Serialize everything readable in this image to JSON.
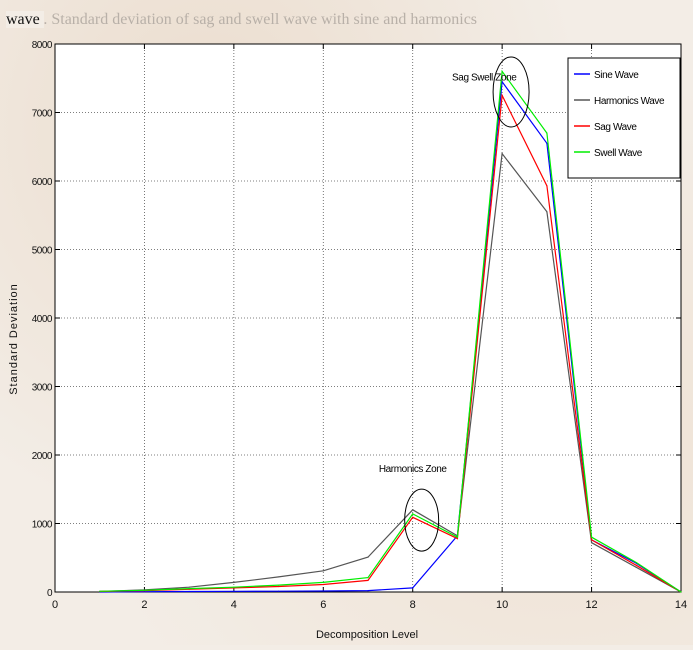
{
  "caption": {
    "faded_text": "Fig. 5. Standard deviation of sag and swell wave with sine and harmonics",
    "second_line": "wave"
  },
  "chart_data": {
    "type": "line",
    "xlabel": "Decomposition Level",
    "ylabel": "Standard Deviation",
    "xlim": [
      0,
      14
    ],
    "ylim": [
      0,
      8000
    ],
    "xticks": [
      0,
      2,
      4,
      6,
      8,
      10,
      12,
      14
    ],
    "yticks": [
      0,
      1000,
      2000,
      3000,
      4000,
      5000,
      6000,
      7000,
      8000
    ],
    "grid": true,
    "legend_position": "top-right",
    "x": [
      1,
      2,
      3,
      4,
      5,
      6,
      7,
      8,
      9,
      10,
      11,
      12,
      13,
      14
    ],
    "series": [
      {
        "name": "Sine Wave",
        "color": "#0000ff",
        "values": [
          0,
          5,
          8,
          10,
          12,
          15,
          20,
          60,
          820,
          7450,
          6550,
          760,
          420,
          0
        ]
      },
      {
        "name": "Harmonics Wave",
        "color": "#555555",
        "values": [
          10,
          30,
          70,
          140,
          220,
          310,
          510,
          1200,
          820,
          6400,
          5550,
          720,
          360,
          0
        ]
      },
      {
        "name": "Sag Wave",
        "color": "#ff0000",
        "values": [
          8,
          20,
          40,
          60,
          80,
          110,
          170,
          1090,
          780,
          7250,
          5930,
          760,
          390,
          0
        ]
      },
      {
        "name": "Swell Wave",
        "color": "#00ee00",
        "values": [
          10,
          25,
          50,
          70,
          100,
          140,
          210,
          1140,
          800,
          7600,
          6700,
          800,
          430,
          0
        ]
      }
    ],
    "annotations": [
      {
        "text": "Sag Swell Zone",
        "x": 9.6,
        "y": 7470,
        "circle": true,
        "circle_x": 10.2,
        "circle_y": 7300
      },
      {
        "text": "Harmonics Zone",
        "x": 8.0,
        "y": 1750,
        "circle": true,
        "circle_x": 8.2,
        "circle_y": 1050
      }
    ]
  }
}
